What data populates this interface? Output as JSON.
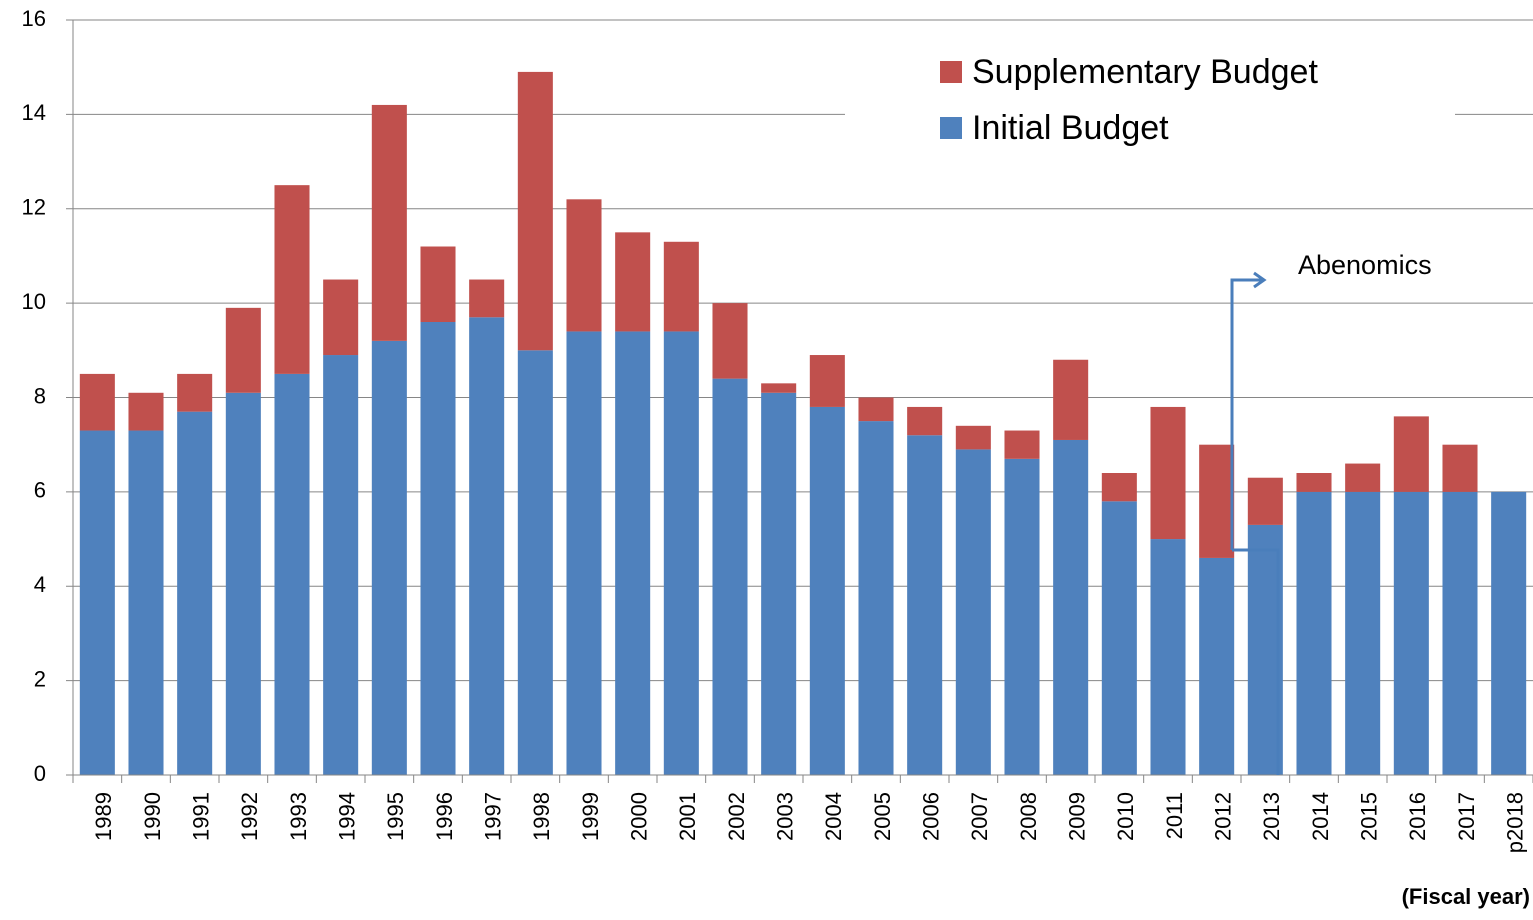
{
  "chart_data": {
    "type": "stacked_bar",
    "categories": [
      "1989",
      "1990",
      "1991",
      "1992",
      "1993",
      "1994",
      "1995",
      "1996",
      "1997",
      "1998",
      "1999",
      "2000",
      "2001",
      "2002",
      "2003",
      "2004",
      "2005",
      "2006",
      "2007",
      "2008",
      "2009",
      "2010",
      "2011",
      "2012",
      "2013",
      "2014",
      "2015",
      "2016",
      "2017",
      "p2018"
    ],
    "series": [
      {
        "name": "Initial Budget",
        "color": "#4f81bd",
        "values": [
          7.3,
          7.3,
          7.7,
          8.1,
          8.5,
          8.9,
          9.2,
          9.6,
          9.7,
          9.0,
          9.4,
          9.4,
          9.4,
          8.4,
          8.1,
          7.8,
          7.5,
          7.2,
          6.9,
          6.7,
          7.1,
          5.8,
          5.0,
          4.6,
          5.3,
          6.0,
          6.0,
          6.0,
          6.0,
          6.0
        ]
      },
      {
        "name": "Supplementary Budget",
        "color": "#c0504d",
        "values": [
          1.2,
          0.8,
          0.8,
          1.8,
          4.0,
          1.6,
          5.0,
          1.6,
          0.8,
          5.9,
          2.8,
          2.1,
          1.9,
          1.6,
          0.2,
          1.1,
          0.5,
          0.6,
          0.5,
          0.6,
          1.7,
          0.6,
          2.8,
          2.4,
          1.0,
          0.4,
          0.6,
          1.6,
          1.0,
          0
        ]
      }
    ],
    "ylim": [
      0,
      16
    ],
    "yticks": [
      0,
      2,
      4,
      6,
      8,
      10,
      12,
      14,
      16
    ],
    "grid": true,
    "x_label": "(Fiscal year)",
    "annotation": "Abenomics",
    "legend": "upper right"
  }
}
